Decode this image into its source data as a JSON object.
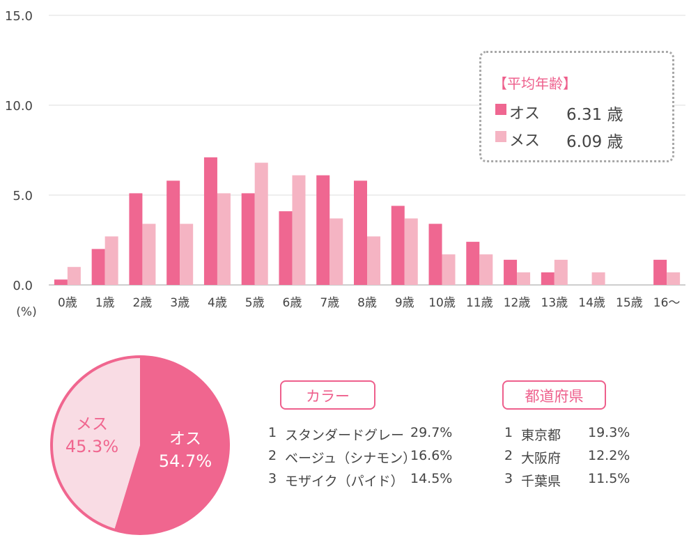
{
  "chart_data": [
    {
      "type": "bar",
      "categories": [
        "0歳",
        "1歳",
        "2歳",
        "3歳",
        "4歳",
        "5歳",
        "6歳",
        "7歳",
        "8歳",
        "9歳",
        "10歳",
        "11歳",
        "12歳",
        "13歳",
        "14歳",
        "15歳",
        "16～"
      ],
      "series": [
        {
          "name": "オス",
          "color": "#ef6791",
          "values": [
            0.3,
            2.0,
            5.1,
            5.8,
            7.1,
            5.1,
            4.1,
            6.1,
            5.8,
            4.4,
            3.4,
            2.4,
            1.4,
            0.7,
            0.0,
            0.0,
            1.4
          ]
        },
        {
          "name": "メス",
          "color": "#f5b4c3",
          "values": [
            1.0,
            2.7,
            3.4,
            3.4,
            5.1,
            6.8,
            6.1,
            3.7,
            2.7,
            3.7,
            1.7,
            1.7,
            0.7,
            1.4,
            0.7,
            0.0,
            0.7
          ]
        }
      ],
      "y_ticks": [
        "0.0",
        "5.0",
        "10.0",
        "15.0"
      ],
      "ylim": [
        0,
        15
      ],
      "ylabel": "(%)",
      "grid": true,
      "average_box": {
        "title": "【平均年齢】",
        "rows": [
          {
            "label": "オス",
            "value": "6.31 歳"
          },
          {
            "label": "メス",
            "value": "6.09 歳"
          }
        ]
      }
    },
    {
      "type": "pie",
      "slices": [
        {
          "name": "オス",
          "value": 54.7,
          "label": "54.7%",
          "color": "#f0668f"
        },
        {
          "name": "メス",
          "value": 45.3,
          "label": "45.3%",
          "color": "#f9dce4"
        }
      ]
    }
  ],
  "rankings": {
    "color": {
      "title": "カラー",
      "items": [
        {
          "rank": "1",
          "name": "スタンダードグレー",
          "pct": "29.7%"
        },
        {
          "rank": "2",
          "name": "ベージュ（シナモン）",
          "pct": "16.6%"
        },
        {
          "rank": "3",
          "name": "モザイク（パイド）",
          "pct": "14.5%"
        }
      ]
    },
    "prefecture": {
      "title": "都道府県",
      "items": [
        {
          "rank": "1",
          "name": "東京都",
          "pct": "19.3%"
        },
        {
          "rank": "2",
          "name": "大阪府",
          "pct": "12.2%"
        },
        {
          "rank": "3",
          "name": "千葉県",
          "pct": "11.5%"
        }
      ]
    }
  }
}
